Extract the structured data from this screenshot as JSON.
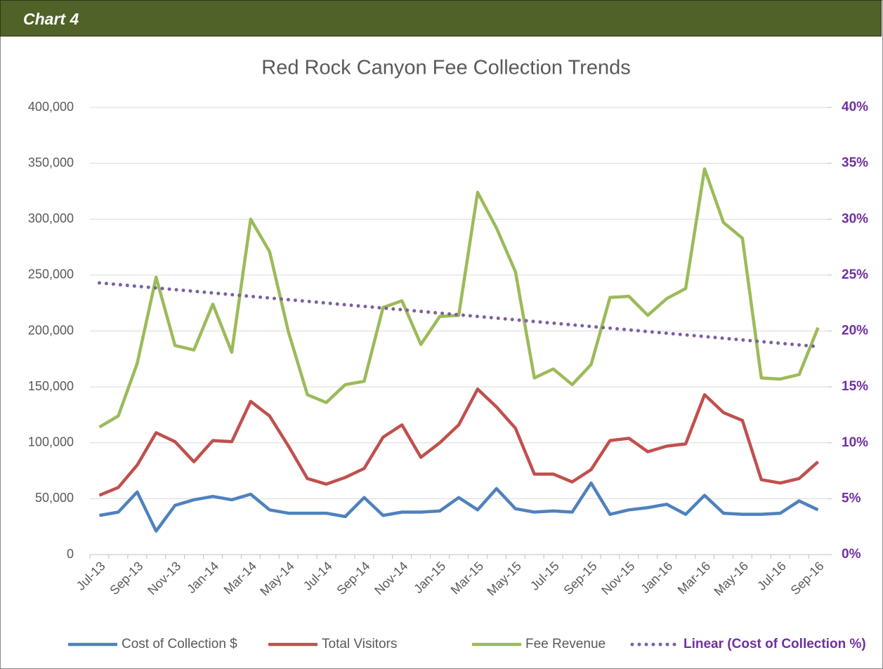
{
  "header": "Chart 4",
  "chart_data": {
    "type": "line",
    "title": "Red Rock Canyon Fee Collection Trends",
    "categories": [
      "Jul-13",
      null,
      "Sep-13",
      null,
      "Nov-13",
      null,
      "Jan-14",
      null,
      "Mar-14",
      null,
      "May-14",
      null,
      "Jul-14",
      null,
      "Sep-14",
      null,
      "Nov-14",
      null,
      "Jan-15",
      null,
      "Mar-15",
      null,
      "May-15",
      null,
      "Jul-15",
      null,
      "Sep-15",
      null,
      "Nov-15",
      null,
      "Jan-16",
      null,
      "Mar-16",
      null,
      "May-16",
      null,
      "Jul-16",
      null,
      "Sep-16"
    ],
    "ylim": [
      0,
      400000
    ],
    "yticks": [
      0,
      {
        "value": 50000,
        "label": "50,000"
      },
      {
        "value": 100000,
        "label": "100,000"
      },
      {
        "value": 150000,
        "label": "150,000"
      },
      {
        "value": 200000,
        "label": "200,000"
      },
      {
        "value": 250000,
        "label": "250,000"
      },
      {
        "value": 300000,
        "label": "300,000"
      },
      {
        "value": 350000,
        "label": "350,000"
      },
      {
        "value": 400000,
        "label": "400,000"
      }
    ],
    "y2lim": [
      0,
      40
    ],
    "y2ticks": [
      {
        "value": 0,
        "label": "0%"
      },
      {
        "value": 5,
        "label": "5%"
      },
      {
        "value": 10,
        "label": "10%"
      },
      {
        "value": 15,
        "label": "15%"
      },
      {
        "value": 20,
        "label": "20%"
      },
      {
        "value": 25,
        "label": "25%"
      },
      {
        "value": 30,
        "label": "30%"
      },
      {
        "value": 35,
        "label": "35%"
      },
      {
        "value": 40,
        "label": "40%"
      }
    ],
    "grid": true,
    "legend": "bottom",
    "series": [
      {
        "name": "Cost of Collection $",
        "color": "#4f81bd",
        "style": "solid",
        "values": [
          35000,
          38000,
          56000,
          21000,
          44000,
          49000,
          52000,
          49000,
          54000,
          40000,
          37000,
          37000,
          37000,
          34000,
          51000,
          35000,
          38000,
          38000,
          39000,
          51000,
          40000,
          59000,
          41000,
          38000,
          39000,
          38000,
          64000,
          36000,
          40000,
          42000,
          45000,
          36000,
          53000,
          37000,
          36000,
          36000,
          37000,
          48000,
          40000
        ]
      },
      {
        "name": "Total Visitors",
        "color": "#c0504d",
        "style": "solid",
        "values": [
          53000,
          60000,
          80000,
          109000,
          101000,
          83000,
          102000,
          101000,
          137000,
          124000,
          97000,
          68000,
          63000,
          69000,
          77000,
          105000,
          116000,
          87000,
          100000,
          116000,
          148000,
          132000,
          113000,
          72000,
          72000,
          65000,
          76000,
          102000,
          104000,
          92000,
          97000,
          99000,
          143000,
          127000,
          120000,
          67000,
          64000,
          68000,
          83000
        ]
      },
      {
        "name": "Fee Revenue",
        "color": "#9bbb59",
        "style": "solid",
        "values": [
          114000,
          124000,
          171000,
          248000,
          187000,
          183000,
          224000,
          181000,
          300000,
          271000,
          199000,
          143000,
          136000,
          152000,
          155000,
          221000,
          227000,
          188000,
          213000,
          214000,
          324000,
          292000,
          253000,
          158000,
          166000,
          152000,
          170000,
          230000,
          231000,
          214000,
          229000,
          238000,
          345000,
          297000,
          283000,
          158000,
          157000,
          161000,
          203000
        ]
      },
      {
        "name": "Linear (Cost of Collection %)",
        "color": "#7d5fa0",
        "style": "dotted",
        "axis": "y2",
        "values": [
          24.3,
          24.15,
          24.0,
          23.85,
          23.7,
          23.55,
          23.4,
          23.25,
          23.1,
          22.95,
          22.8,
          22.65,
          22.5,
          22.35,
          22.2,
          22.05,
          21.9,
          21.75,
          21.6,
          21.45,
          21.3,
          21.15,
          21.0,
          20.85,
          20.7,
          20.55,
          20.4,
          20.25,
          20.1,
          19.95,
          19.8,
          19.65,
          19.5,
          19.35,
          19.2,
          19.05,
          18.9,
          18.75,
          18.6
        ]
      }
    ]
  }
}
